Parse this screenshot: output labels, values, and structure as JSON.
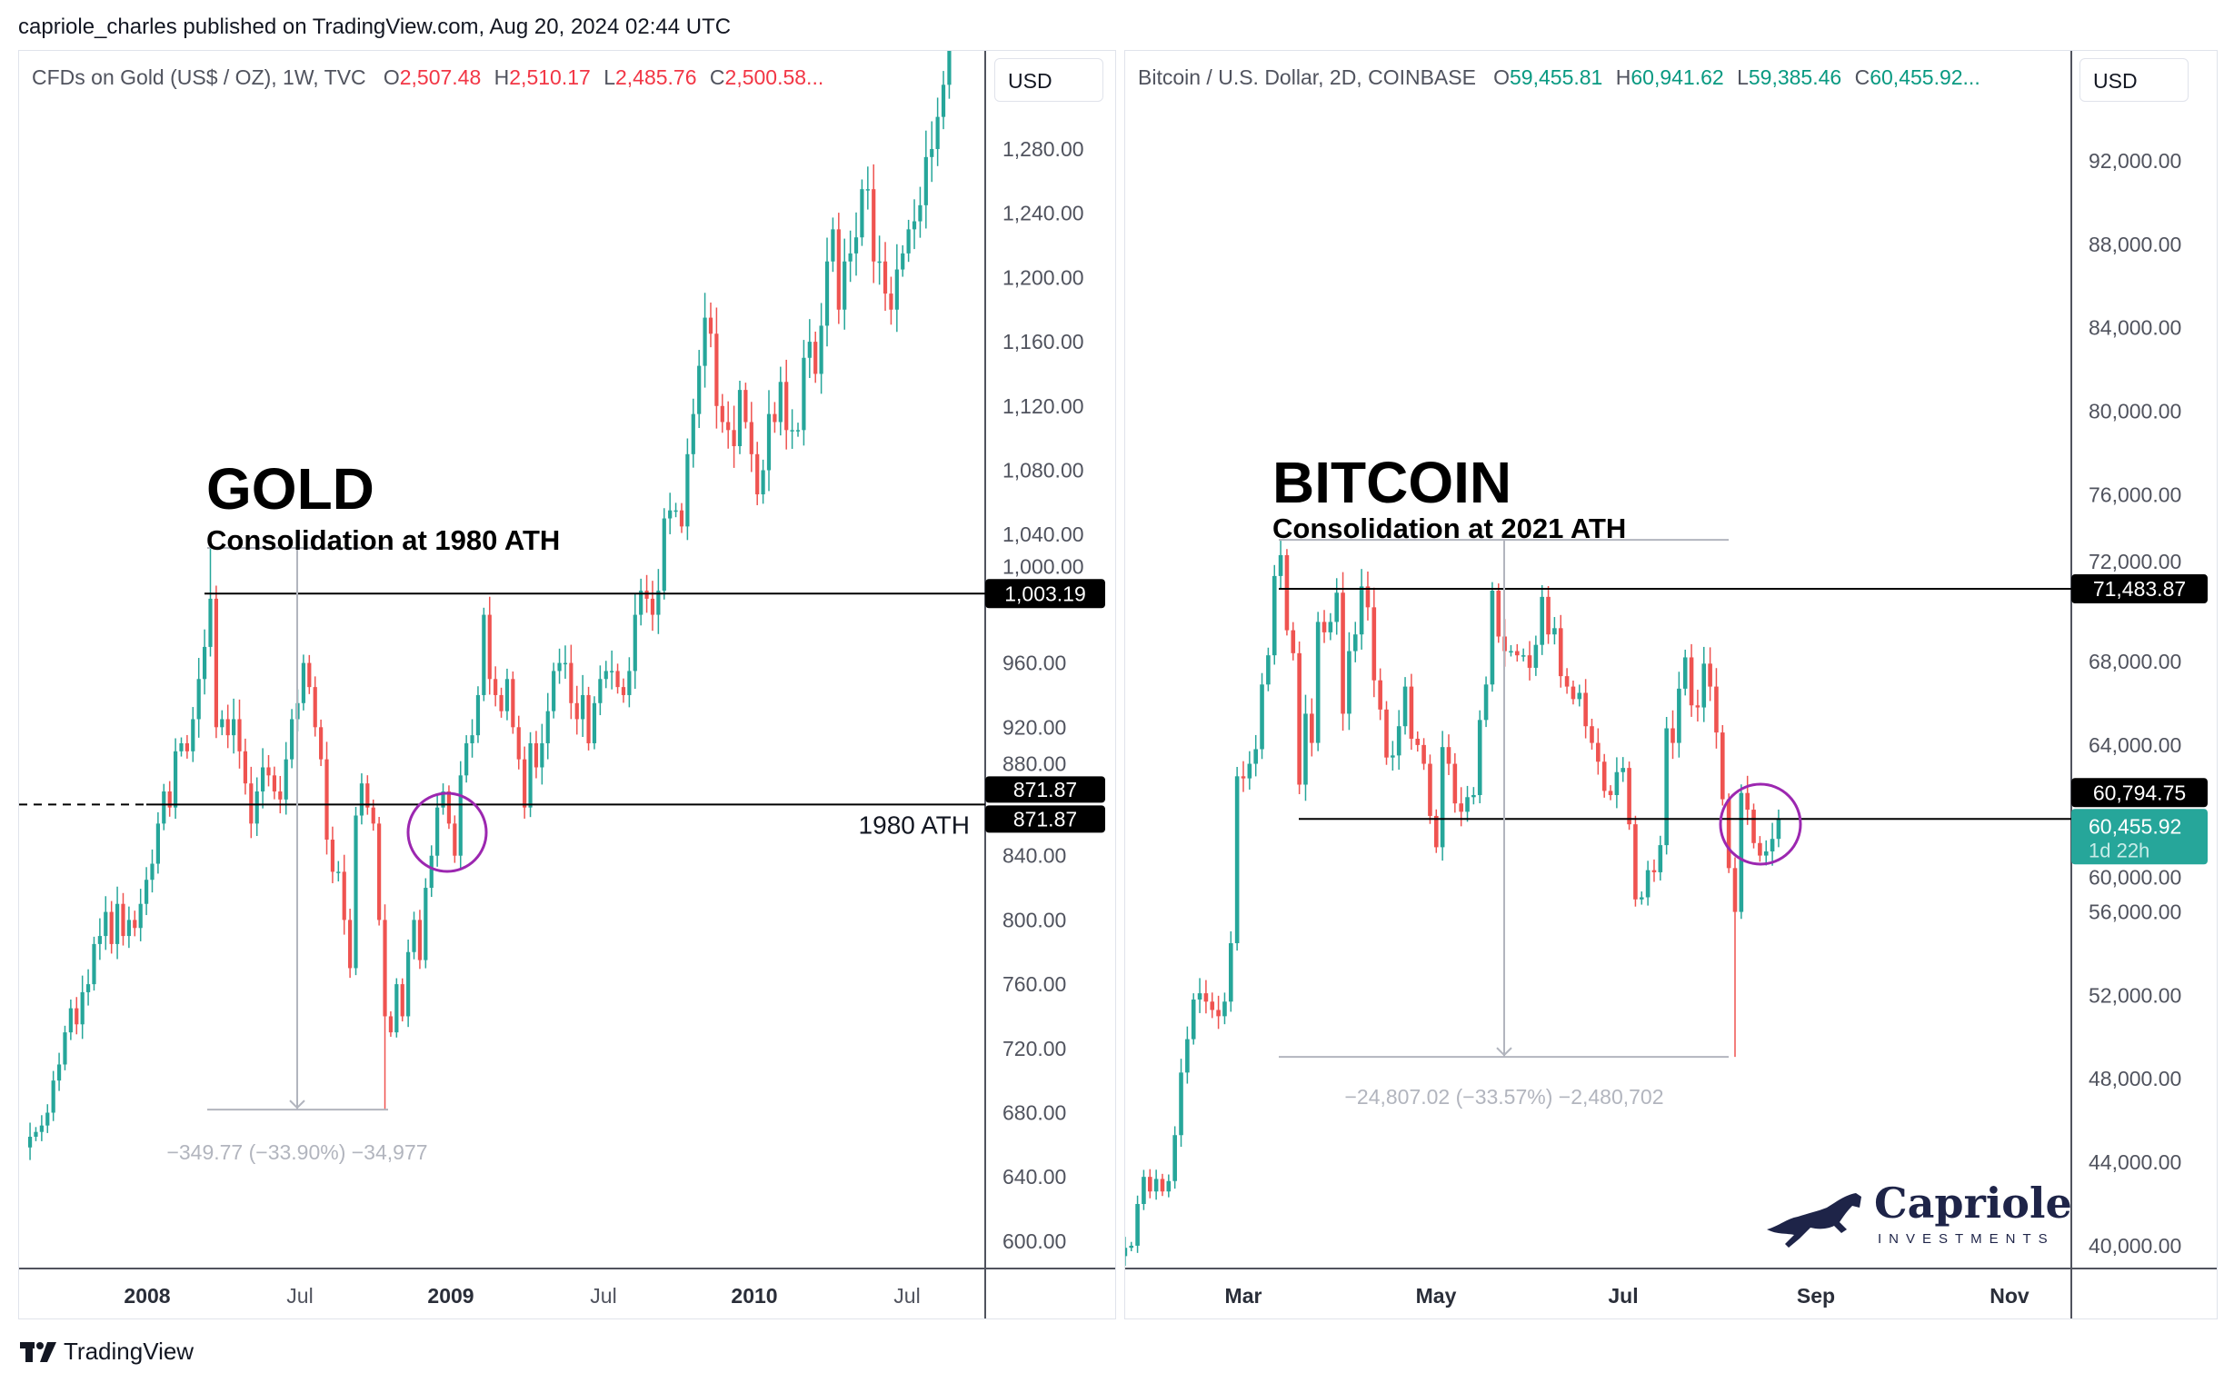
{
  "header": {
    "published": "capriole_charles published on TradingView.com, Aug 20, 2024 02:44 UTC"
  },
  "footer": {
    "brand": "TradingView"
  },
  "colors": {
    "up": "#26a69a",
    "down": "#ef5350",
    "gold_legend": "#f23645",
    "btc_legend": "#089981",
    "circle": "#9c27b0",
    "measure": "#b2b5be",
    "last_price": "#26a69a",
    "logo": "#1e2448"
  },
  "gold": {
    "legend": {
      "symbol": "CFDs on Gold (US$ / OZ), 1W, TVC",
      "o_label": "O",
      "o": "2,507.48",
      "h_label": "H",
      "h": "2,510.17",
      "l_label": "L",
      "l": "2,485.76",
      "c_label": "C",
      "c": "2,500.58..."
    },
    "currency": "USD",
    "title": "GOLD",
    "subtitle": "Consolidation at 1980 ATH",
    "ath_label": "1980 ATH",
    "level_high": "1,003.19",
    "level_ath": "871.87",
    "level_ath2": "871.87",
    "measure_text": "−349.77 (−33.90%) −34,977",
    "price_ticks": [
      "1,280.00",
      "1,240.00",
      "1,200.00",
      "1,160.00",
      "1,120.00",
      "1,080.00",
      "1,040.00",
      "1,000.00",
      "960.00",
      "920.00",
      "880.00",
      "840.00",
      "800.00",
      "760.00",
      "720.00",
      "680.00",
      "640.00",
      "600.00"
    ],
    "time_ticks": [
      {
        "label": "2008",
        "bold": true
      },
      {
        "label": "Jul",
        "bold": false
      },
      {
        "label": "2009",
        "bold": true
      },
      {
        "label": "Jul",
        "bold": false
      },
      {
        "label": "2010",
        "bold": true
      },
      {
        "label": "Jul",
        "bold": false
      }
    ]
  },
  "btc": {
    "legend": {
      "symbol": "Bitcoin / U.S. Dollar, 2D, COINBASE",
      "o_label": "O",
      "o": "59,455.81",
      "h_label": "H",
      "h": "60,941.62",
      "l_label": "L",
      "l": "59,385.46",
      "c_label": "C",
      "c": "60,455.92..."
    },
    "currency": "USD",
    "title": "BITCOIN",
    "subtitle": "Consolidation at 2021 ATH",
    "level_high": "71,483.87",
    "level_prev": "60,794.75",
    "last_price": "60,455.92",
    "countdown": "1d 22h",
    "measure_text": "−24,807.02 (−33.57%) −2,480,702",
    "price_ticks": [
      "92,000.00",
      "88,000.00",
      "84,000.00",
      "80,000.00",
      "76,000.00",
      "72,000.00",
      "68,000.00",
      "64,000.00",
      "60,000.00",
      "56,000.00",
      "52,000.00",
      "48,000.00",
      "44,000.00",
      "40,000.00"
    ],
    "time_ticks": [
      {
        "label": "Mar",
        "bold": true
      },
      {
        "label": "May",
        "bold": true
      },
      {
        "label": "Jul",
        "bold": true
      },
      {
        "label": "Sep",
        "bold": true
      },
      {
        "label": "Nov",
        "bold": true
      }
    ],
    "logo": {
      "name": "Capriole",
      "tagline": "INVESTMENTS"
    }
  },
  "chart_data": [
    {
      "type": "candlestick",
      "series_label": "CFDs on Gold (US$ / OZ), 1W, TVC",
      "x_start": "2007-08-13",
      "interval_days": 7,
      "ylim": [
        600,
        1341
      ],
      "levels": [
        1003.19,
        871.87
      ],
      "closes": [
        665,
        668,
        672,
        680,
        700,
        710,
        730,
        745,
        735,
        755,
        760,
        785,
        790,
        805,
        785,
        810,
        790,
        800,
        795,
        810,
        825,
        835,
        860,
        880,
        870,
        905,
        910,
        905,
        925,
        950,
        970,
        1000,
        920,
        925,
        915,
        925,
        905,
        885,
        860,
        880,
        895,
        890,
        880,
        875,
        900,
        925,
        935,
        960,
        945,
        920,
        900,
        850,
        830,
        830,
        800,
        770,
        865,
        885,
        870,
        860,
        800,
        740,
        730,
        760,
        740,
        780,
        800,
        775,
        820,
        840,
        870,
        880,
        860,
        840,
        890,
        910,
        915,
        940,
        990,
        950,
        940,
        930,
        950,
        920,
        900,
        870,
        910,
        895,
        910,
        930,
        955,
        960,
        960,
        935,
        925,
        940,
        910,
        935,
        950,
        955,
        955,
        945,
        940,
        955,
        990,
        1005,
        1000,
        990,
        1005,
        1050,
        1055,
        1055,
        1045,
        1090,
        1115,
        1145,
        1175,
        1165,
        1120,
        1110,
        1105,
        1095,
        1130,
        1110,
        1090,
        1065,
        1080,
        1115,
        1110,
        1135,
        1105,
        1105,
        1105,
        1150,
        1160,
        1140,
        1170,
        1210,
        1230,
        1180,
        1210,
        1215,
        1225,
        1255,
        1255,
        1210,
        1210,
        1190,
        1180,
        1205,
        1215,
        1230,
        1235,
        1245,
        1275,
        1280,
        1300,
        1320,
        1345
      ],
      "wick_extremes": [
        {
          "index": 31,
          "high": 1031.6
        },
        {
          "index": 61,
          "low": 681.9
        }
      ]
    },
    {
      "type": "candlestick",
      "series_label": "Bitcoin / U.S. Dollar, 2D, COINBASE",
      "x_start": "2024-01-23",
      "interval_days": 2,
      "ylim": [
        39000,
        94500
      ],
      "levels": [
        71483.87,
        60455.92
      ],
      "closes": [
        39900,
        40000,
        42000,
        43300,
        42600,
        43200,
        42600,
        43100,
        45300,
        48300,
        49900,
        51800,
        52100,
        51700,
        51300,
        51000,
        51700,
        54500,
        62500,
        62400,
        63100,
        63800,
        66900,
        68300,
        72100,
        73100,
        69500,
        68400,
        62100,
        65500,
        64100,
        69900,
        69400,
        69900,
        71300,
        65500,
        68500,
        69300,
        71600,
        70600,
        67100,
        65700,
        63400,
        63500,
        64900,
        66800,
        64300,
        64000,
        63100,
        60600,
        59100,
        63900,
        63100,
        61200,
        60800,
        61500,
        61600,
        65200,
        66900,
        71400,
        69200,
        68500,
        68500,
        68300,
        68300,
        67700,
        68800,
        71100,
        69300,
        69600,
        67300,
        66800,
        66200,
        66500,
        64900,
        64100,
        63200,
        61800,
        61600,
        62700,
        62900,
        60200,
        56600,
        56700,
        58000,
        57900,
        59200,
        64800,
        64100,
        66700,
        68200,
        65900,
        65800,
        67900,
        66800,
        64600,
        61400,
        58100,
        56000,
        61700,
        60900,
        59300,
        58700,
        58900,
        59500,
        60456
      ],
      "wick_extremes": [
        {
          "index": 25,
          "high": 73800
        },
        {
          "index": 98,
          "low": 49050
        }
      ]
    }
  ]
}
